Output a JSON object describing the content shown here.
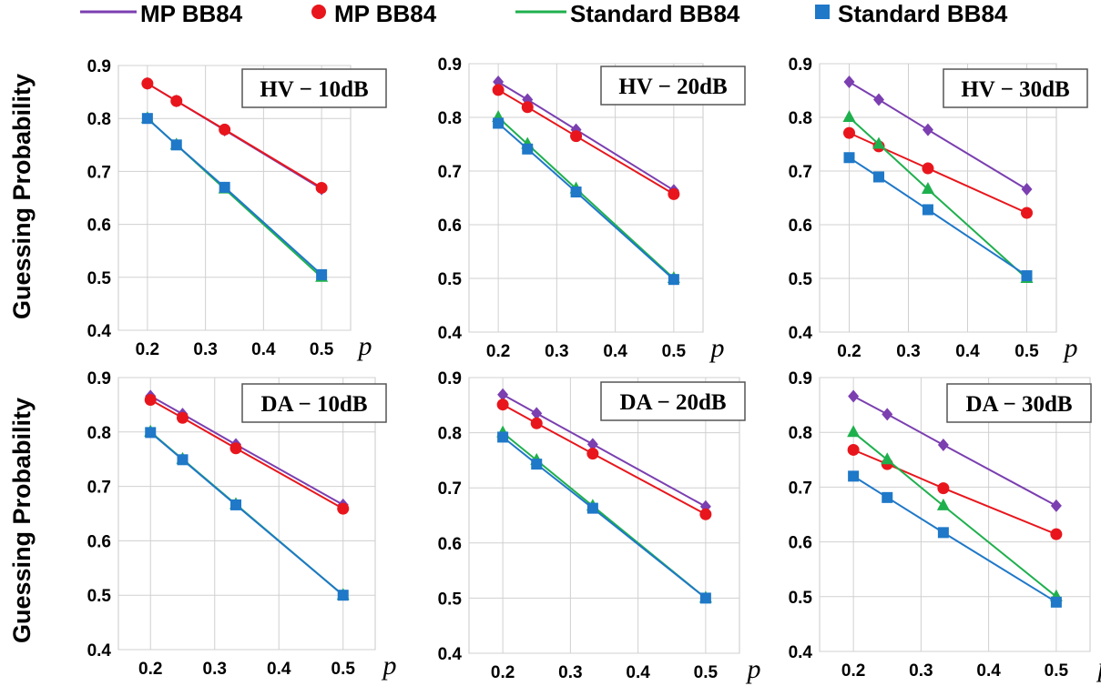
{
  "legend": [
    {
      "label": "MP BB84",
      "kind": "line",
      "color": "#7b3fb0"
    },
    {
      "label": "MP BB84",
      "kind": "marker",
      "color": "#e8161c"
    },
    {
      "label": "Standard BB84",
      "kind": "line",
      "color": "#1fb04e"
    },
    {
      "label": "Standard BB84",
      "kind": "marker",
      "color": "#1f78c8"
    }
  ],
  "ylabel_top": "Guessing Probability",
  "ylabel_bottom": "Guessing Probability",
  "chart_data": [
    {
      "type": "line",
      "title": "HV − 10dB",
      "xlabel": "p",
      "ylabel": "Guessing Probability",
      "ylim": [
        0.4,
        0.9
      ],
      "yticks": [
        "0.4",
        "0.5",
        "0.6",
        "0.7",
        "0.8",
        "0.9"
      ],
      "xticks": [
        "0.2",
        "0.3",
        "0.4",
        "0.5"
      ],
      "grid": true,
      "series": [
        {
          "marker": "diamond",
          "color": "#7b3fb0",
          "x": [
            0.2,
            0.25,
            0.333,
            0.5
          ],
          "y": [
            0.866,
            0.833,
            0.778,
            0.667
          ]
        },
        {
          "marker": "circle",
          "color": "#e8161c",
          "x": [
            0.2,
            0.25,
            0.333,
            0.5
          ],
          "y": [
            0.866,
            0.833,
            0.779,
            0.669
          ]
        },
        {
          "marker": "triangle",
          "color": "#1fb04e",
          "x": [
            0.2,
            0.25,
            0.333,
            0.5
          ],
          "y": [
            0.8,
            0.75,
            0.667,
            0.5
          ]
        },
        {
          "marker": "square",
          "color": "#1f78c8",
          "x": [
            0.2,
            0.25,
            0.333,
            0.5
          ],
          "y": [
            0.8,
            0.75,
            0.67,
            0.505
          ]
        }
      ]
    },
    {
      "type": "line",
      "title": "HV − 20dB",
      "xlabel": "p",
      "ylabel": "Guessing Probability",
      "ylim": [
        0.4,
        0.9
      ],
      "yticks": [
        "0.4",
        "0.5",
        "0.6",
        "0.7",
        "0.8",
        "0.9"
      ],
      "xticks": [
        "0.2",
        "0.3",
        "0.4",
        "0.5"
      ],
      "grid": true,
      "series": [
        {
          "marker": "diamond",
          "color": "#7b3fb0",
          "x": [
            0.2,
            0.25,
            0.333,
            0.5
          ],
          "y": [
            0.866,
            0.833,
            0.777,
            0.664
          ]
        },
        {
          "marker": "circle",
          "color": "#e8161c",
          "x": [
            0.2,
            0.25,
            0.333,
            0.5
          ],
          "y": [
            0.851,
            0.819,
            0.765,
            0.657
          ]
        },
        {
          "marker": "triangle",
          "color": "#1fb04e",
          "x": [
            0.2,
            0.25,
            0.333,
            0.5
          ],
          "y": [
            0.8,
            0.75,
            0.667,
            0.5
          ]
        },
        {
          "marker": "square",
          "color": "#1f78c8",
          "x": [
            0.2,
            0.25,
            0.333,
            0.5
          ],
          "y": [
            0.789,
            0.741,
            0.661,
            0.498
          ]
        }
      ]
    },
    {
      "type": "line",
      "title": "HV − 30dB",
      "xlabel": "p",
      "ylabel": "Guessing Probability",
      "ylim": [
        0.4,
        0.9
      ],
      "yticks": [
        "0.4",
        "0.5",
        "0.6",
        "0.7",
        "0.8",
        "0.9"
      ],
      "xticks": [
        "0.2",
        "0.3",
        "0.4",
        "0.5"
      ],
      "grid": true,
      "series": [
        {
          "marker": "diamond",
          "color": "#7b3fb0",
          "x": [
            0.2,
            0.25,
            0.333,
            0.5
          ],
          "y": [
            0.866,
            0.833,
            0.777,
            0.666
          ]
        },
        {
          "marker": "circle",
          "color": "#e8161c",
          "x": [
            0.2,
            0.25,
            0.333,
            0.5
          ],
          "y": [
            0.771,
            0.746,
            0.705,
            0.622
          ]
        },
        {
          "marker": "triangle",
          "color": "#1fb04e",
          "x": [
            0.2,
            0.25,
            0.333,
            0.5
          ],
          "y": [
            0.8,
            0.75,
            0.666,
            0.5
          ]
        },
        {
          "marker": "square",
          "color": "#1f78c8",
          "x": [
            0.2,
            0.25,
            0.333,
            0.5
          ],
          "y": [
            0.725,
            0.689,
            0.628,
            0.505
          ]
        }
      ]
    },
    {
      "type": "line",
      "title": "DA − 10dB",
      "xlabel": "p",
      "ylabel": "Guessing Probability",
      "ylim": [
        0.4,
        0.9
      ],
      "yticks": [
        "0.4",
        "0.5",
        "0.6",
        "0.7",
        "0.8",
        "0.9"
      ],
      "xticks": [
        "0.2",
        "0.3",
        "0.4",
        "0.5"
      ],
      "grid": true,
      "series": [
        {
          "marker": "diamond",
          "color": "#7b3fb0",
          "x": [
            0.2,
            0.25,
            0.333,
            0.5
          ],
          "y": [
            0.866,
            0.833,
            0.777,
            0.666
          ]
        },
        {
          "marker": "circle",
          "color": "#e8161c",
          "x": [
            0.2,
            0.25,
            0.333,
            0.5
          ],
          "y": [
            0.859,
            0.826,
            0.77,
            0.659
          ]
        },
        {
          "marker": "triangle",
          "color": "#1fb04e",
          "x": [
            0.2,
            0.25,
            0.333,
            0.5
          ],
          "y": [
            0.8,
            0.75,
            0.667,
            0.5
          ]
        },
        {
          "marker": "square",
          "color": "#1f78c8",
          "x": [
            0.2,
            0.25,
            0.333,
            0.5
          ],
          "y": [
            0.799,
            0.749,
            0.666,
            0.5
          ]
        }
      ]
    },
    {
      "type": "line",
      "title": "DA − 20dB",
      "xlabel": "p",
      "ylabel": "Guessing Probability",
      "ylim": [
        0.4,
        0.9
      ],
      "yticks": [
        "0.4",
        "0.5",
        "0.6",
        "0.7",
        "0.8",
        "0.9"
      ],
      "xticks": [
        "0.2",
        "0.3",
        "0.4",
        "0.5"
      ],
      "grid": true,
      "series": [
        {
          "marker": "diamond",
          "color": "#7b3fb0",
          "x": [
            0.2,
            0.25,
            0.333,
            0.5
          ],
          "y": [
            0.869,
            0.835,
            0.779,
            0.666
          ]
        },
        {
          "marker": "circle",
          "color": "#e8161c",
          "x": [
            0.2,
            0.25,
            0.333,
            0.5
          ],
          "y": [
            0.851,
            0.817,
            0.762,
            0.652
          ]
        },
        {
          "marker": "triangle",
          "color": "#1fb04e",
          "x": [
            0.2,
            0.25,
            0.333,
            0.5
          ],
          "y": [
            0.8,
            0.75,
            0.667,
            0.5
          ]
        },
        {
          "marker": "square",
          "color": "#1f78c8",
          "x": [
            0.2,
            0.25,
            0.333,
            0.5
          ],
          "y": [
            0.792,
            0.743,
            0.663,
            0.5
          ]
        }
      ]
    },
    {
      "type": "line",
      "title": "DA − 30dB",
      "xlabel": "p",
      "ylabel": "Guessing Probability",
      "ylim": [
        0.4,
        0.9
      ],
      "yticks": [
        "0.4",
        "0.5",
        "0.6",
        "0.7",
        "0.8",
        "0.9"
      ],
      "xticks": [
        "0.2",
        "0.3",
        "0.4",
        "0.5"
      ],
      "grid": true,
      "series": [
        {
          "marker": "diamond",
          "color": "#7b3fb0",
          "x": [
            0.2,
            0.25,
            0.333,
            0.5
          ],
          "y": [
            0.866,
            0.833,
            0.777,
            0.666
          ]
        },
        {
          "marker": "circle",
          "color": "#e8161c",
          "x": [
            0.2,
            0.25,
            0.333,
            0.5
          ],
          "y": [
            0.768,
            0.742,
            0.698,
            0.614
          ]
        },
        {
          "marker": "triangle",
          "color": "#1fb04e",
          "x": [
            0.2,
            0.25,
            0.333,
            0.5
          ],
          "y": [
            0.8,
            0.75,
            0.666,
            0.5
          ]
        },
        {
          "marker": "square",
          "color": "#1f78c8",
          "x": [
            0.2,
            0.25,
            0.333,
            0.5
          ],
          "y": [
            0.72,
            0.681,
            0.617,
            0.49
          ]
        }
      ]
    }
  ]
}
